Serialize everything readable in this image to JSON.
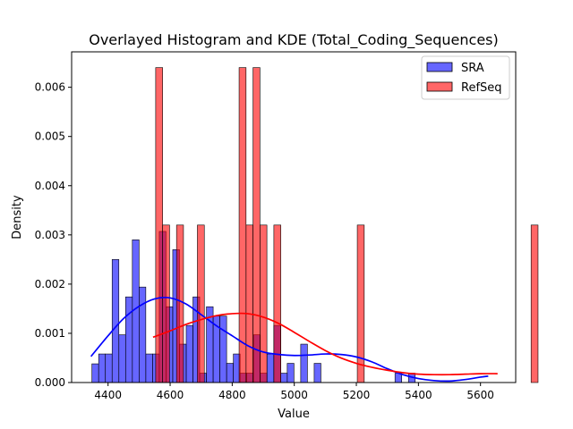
{
  "chart_data": {
    "type": "bar",
    "title": "Overlayed Histogram and KDE (Total_Coding_Sequences)",
    "xlabel": "Value",
    "ylabel": "Density",
    "xlim": [
      4282.6,
      5713.4
    ],
    "ylim": [
      0,
      0.00672
    ],
    "xticks": [
      4400,
      4600,
      4800,
      5000,
      5200,
      5400,
      5600
    ],
    "yticks": [
      0.0,
      0.001,
      0.002,
      0.003,
      0.004,
      0.005,
      0.006
    ],
    "ytick_labels": [
      "0.000",
      "0.001",
      "0.002",
      "0.003",
      "0.004",
      "0.005",
      "0.006"
    ],
    "grid": false,
    "legend_position": "top-right",
    "series": [
      {
        "name": "SRA",
        "kind": "histogram",
        "color": "#0000ff",
        "bin_start": 4348,
        "bin_width": 21.7,
        "density": [
          0.00038,
          0.00058,
          0.00058,
          0.0025,
          0.00097,
          0.00174,
          0.0029,
          0.00194,
          0.00058,
          0.00058,
          0.00307,
          0.00154,
          0.0027,
          0.00078,
          0.00116,
          0.00174,
          0.00019,
          0.00154,
          0.00135,
          0.00135,
          0.00039,
          0.00058,
          0.00019,
          0.00019,
          0.00097,
          0.00019,
          0.00058,
          0.00116,
          0.00019,
          0.00039,
          0.0,
          0.00078,
          0.0,
          0.00039,
          0.0,
          0.0,
          0.0,
          0.0,
          0.0,
          0.0,
          0.0,
          0.0,
          0.0,
          0.0,
          0.0,
          0.00019,
          0.0,
          0.00019
        ]
      },
      {
        "name": "RefSeq",
        "kind": "histogram",
        "color": "#ff0000",
        "bin_start": 4531,
        "bin_width": 22.4,
        "density": [
          0.0,
          0.0064,
          0.0032,
          0.0,
          0.0032,
          0.0,
          0.0,
          0.0032,
          0.0,
          0.0,
          0.0,
          0.0,
          0.0,
          0.0064,
          0.0032,
          0.0064,
          0.0032,
          0.0,
          0.0032,
          0.0,
          0.0,
          0.0,
          0.0,
          0.0,
          0.0,
          0.0,
          0.0,
          0.0,
          0.0,
          0.0,
          0.0032,
          0.0,
          0.0,
          0.0,
          0.0,
          0.0,
          0.0,
          0.0,
          0.0,
          0.0,
          0.0,
          0.0,
          0.0,
          0.0,
          0.0,
          0.0,
          0.0,
          0.0,
          0.0,
          0.0,
          0.0,
          0.0,
          0.0,
          0.0,
          0.0,
          0.0032
        ]
      },
      {
        "name": "SRA",
        "kind": "kde",
        "color": "#0000ff",
        "x": [
          4345,
          4400,
          4450,
          4500,
          4550,
          4600,
          4650,
          4700,
          4750,
          4800,
          4850,
          4900,
          4950,
          5000,
          5050,
          5100,
          5150,
          5200,
          5250,
          5300,
          5350,
          5400,
          5450,
          5500,
          5550,
          5600,
          5625
        ],
        "y": [
          0.00053,
          0.00095,
          0.0013,
          0.00155,
          0.0017,
          0.00172,
          0.0016,
          0.00138,
          0.00115,
          0.00095,
          0.00075,
          0.00062,
          0.00057,
          0.00055,
          0.00056,
          0.00058,
          0.00057,
          0.00052,
          0.00042,
          0.00028,
          0.00016,
          8e-05,
          4e-05,
          3e-05,
          6e-05,
          0.00011,
          0.00013
        ]
      },
      {
        "name": "RefSeq",
        "kind": "kde",
        "color": "#ff0000",
        "x": [
          4545,
          4600,
          4650,
          4700,
          4750,
          4800,
          4850,
          4900,
          4950,
          5000,
          5050,
          5100,
          5150,
          5200,
          5250,
          5300,
          5350,
          5400,
          5450,
          5500,
          5550,
          5600,
          5655
        ],
        "y": [
          0.00092,
          0.00105,
          0.00118,
          0.00128,
          0.00136,
          0.0014,
          0.0014,
          0.00133,
          0.0012,
          0.00102,
          0.00083,
          0.00065,
          0.0005,
          0.00039,
          0.00031,
          0.00025,
          0.0002,
          0.00017,
          0.00016,
          0.00016,
          0.00017,
          0.00018,
          0.00018
        ]
      }
    ]
  }
}
